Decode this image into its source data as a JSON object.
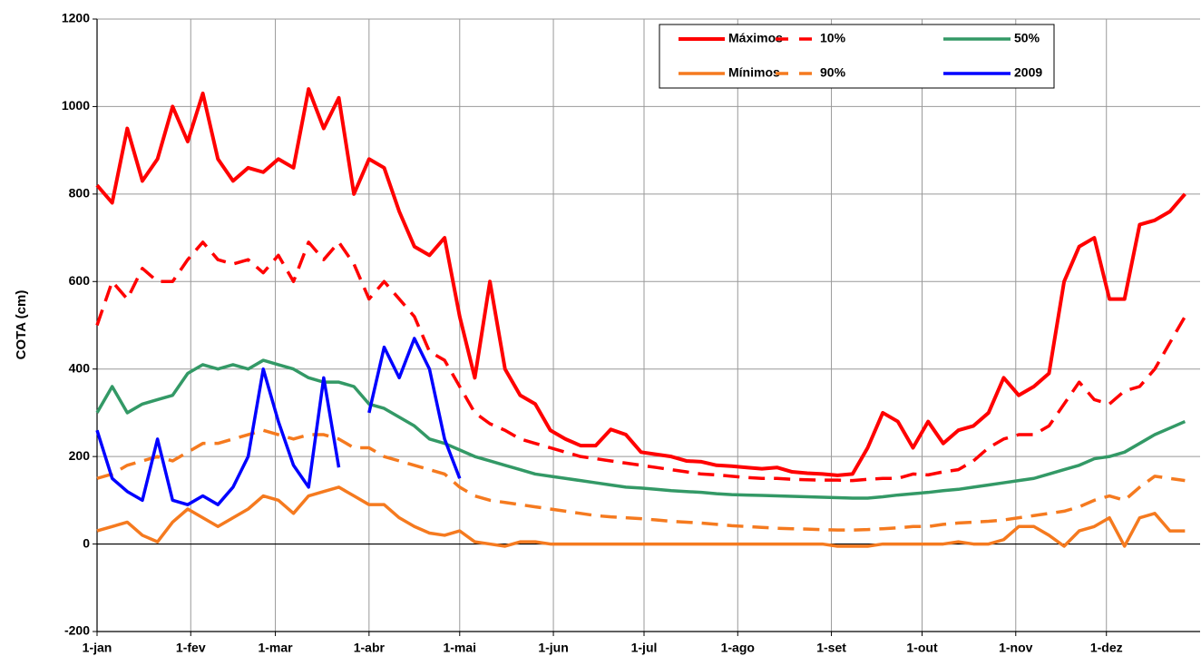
{
  "chart_data": {
    "type": "line",
    "ylabel": "COTA (cm)",
    "x": [
      1,
      6,
      11,
      16,
      21,
      26,
      31,
      36,
      41,
      46,
      51,
      56,
      61,
      66,
      71,
      76,
      81,
      86,
      91,
      96,
      101,
      106,
      111,
      116,
      121,
      126,
      131,
      136,
      141,
      146,
      151,
      156,
      161,
      166,
      171,
      176,
      181,
      186,
      191,
      196,
      201,
      206,
      211,
      216,
      221,
      226,
      231,
      236,
      241,
      246,
      251,
      256,
      261,
      266,
      271,
      276,
      281,
      286,
      291,
      296,
      301,
      306,
      311,
      316,
      321,
      326,
      331,
      336,
      341,
      346,
      351,
      356,
      361
    ],
    "xlim": [
      1,
      366
    ],
    "xticks": [
      {
        "value": 1,
        "label": "1-jan"
      },
      {
        "value": 32,
        "label": "1-fev"
      },
      {
        "value": 60,
        "label": "1-mar"
      },
      {
        "value": 91,
        "label": "1-abr"
      },
      {
        "value": 121,
        "label": "1-mai"
      },
      {
        "value": 152,
        "label": "1-jun"
      },
      {
        "value": 182,
        "label": "1-jul"
      },
      {
        "value": 213,
        "label": "1-ago"
      },
      {
        "value": 244,
        "label": "1-set"
      },
      {
        "value": 274,
        "label": "1-out"
      },
      {
        "value": 305,
        "label": "1-nov"
      },
      {
        "value": 335,
        "label": "1-dez"
      }
    ],
    "ylim": [
      -200,
      1200
    ],
    "yticks": [
      -200,
      0,
      200,
      400,
      600,
      800,
      1000,
      1200
    ],
    "grid": true,
    "legend": "upper right",
    "series": [
      {
        "name": "Máximos",
        "color": "#ff0000",
        "style": "solid",
        "values": [
          820,
          780,
          950,
          830,
          880,
          1000,
          920,
          1030,
          880,
          830,
          860,
          850,
          880,
          860,
          1040,
          950,
          1020,
          800,
          880,
          860,
          760,
          680,
          660,
          700,
          520,
          380,
          600,
          400,
          340,
          320,
          260,
          240,
          225,
          225,
          262,
          250,
          210,
          205,
          200,
          190,
          188,
          180,
          178,
          175,
          172,
          175,
          165,
          162,
          160,
          157,
          160,
          220,
          300,
          280,
          220,
          280,
          230,
          260,
          270,
          300,
          380,
          340,
          360,
          390,
          600,
          680,
          700,
          560,
          560,
          730,
          740,
          760,
          800
        ]
      },
      {
        "name": "Mínimos",
        "color": "#f57a1f",
        "style": "solid",
        "values": [
          30,
          40,
          50,
          20,
          5,
          50,
          80,
          60,
          40,
          60,
          80,
          110,
          100,
          70,
          110,
          120,
          130,
          110,
          90,
          90,
          60,
          40,
          25,
          20,
          30,
          5,
          0,
          -5,
          5,
          5,
          0,
          0,
          0,
          0,
          0,
          0,
          0,
          0,
          0,
          0,
          0,
          0,
          0,
          0,
          0,
          0,
          0,
          0,
          0,
          -5,
          -5,
          -5,
          0,
          0,
          0,
          0,
          0,
          5,
          0,
          0,
          10,
          40,
          40,
          20,
          -5,
          30,
          40,
          60,
          -5,
          60,
          70,
          30,
          30
        ]
      },
      {
        "name": "10%",
        "color": "#ff0000",
        "style": "dashed",
        "values": [
          500,
          600,
          560,
          630,
          600,
          600,
          650,
          690,
          650,
          640,
          650,
          620,
          660,
          600,
          690,
          650,
          690,
          640,
          560,
          600,
          560,
          520,
          440,
          420,
          360,
          300,
          275,
          260,
          240,
          230,
          220,
          210,
          200,
          195,
          190,
          185,
          180,
          175,
          170,
          165,
          160,
          158,
          155,
          152,
          150,
          150,
          148,
          147,
          146,
          146,
          145,
          148,
          150,
          150,
          160,
          158,
          165,
          170,
          190,
          220,
          240,
          250,
          250,
          270,
          320,
          370,
          330,
          320,
          350,
          360,
          400,
          460,
          520
        ]
      },
      {
        "name": "90%",
        "color": "#f57a1f",
        "style": "dashed",
        "values": [
          150,
          160,
          180,
          190,
          200,
          190,
          210,
          230,
          230,
          240,
          250,
          260,
          250,
          240,
          250,
          250,
          240,
          220,
          220,
          200,
          190,
          180,
          170,
          160,
          130,
          110,
          100,
          95,
          90,
          85,
          80,
          75,
          70,
          65,
          62,
          60,
          58,
          55,
          52,
          50,
          48,
          45,
          42,
          40,
          38,
          36,
          35,
          34,
          33,
          32,
          32,
          33,
          35,
          37,
          40,
          40,
          45,
          48,
          50,
          52,
          55,
          60,
          65,
          70,
          75,
          85,
          100,
          110,
          100,
          130,
          155,
          150,
          145
        ]
      },
      {
        "name": "50%",
        "color": "#339966",
        "style": "solid",
        "values": [
          300,
          360,
          300,
          320,
          330,
          340,
          390,
          410,
          400,
          410,
          400,
          420,
          410,
          400,
          380,
          370,
          370,
          360,
          320,
          310,
          290,
          270,
          240,
          230,
          215,
          200,
          190,
          180,
          170,
          160,
          155,
          150,
          145,
          140,
          135,
          130,
          128,
          125,
          122,
          120,
          118,
          115,
          113,
          112,
          111,
          110,
          109,
          108,
          107,
          106,
          105,
          105,
          108,
          112,
          115,
          118,
          122,
          125,
          130,
          135,
          140,
          145,
          150,
          160,
          170,
          180,
          195,
          200,
          210,
          230,
          250,
          265,
          280
        ]
      },
      {
        "name": "2009",
        "color": "#0000ff",
        "style": "solid",
        "values": [
          260,
          150,
          120,
          100,
          240,
          100,
          90,
          110,
          90,
          130,
          200,
          400,
          280,
          180,
          130,
          380,
          175,
          null,
          300,
          450,
          380,
          470,
          400,
          240,
          150,
          null,
          null,
          null,
          null,
          null,
          null,
          null,
          null,
          null,
          null,
          null,
          null,
          null,
          null,
          null,
          null,
          null,
          null,
          null,
          null,
          null,
          null,
          null,
          null,
          null,
          null,
          null,
          null,
          null,
          null,
          null,
          null,
          null,
          null,
          null,
          null,
          null,
          null,
          null,
          null,
          null,
          null,
          null,
          null,
          null,
          null,
          null,
          null
        ]
      }
    ]
  }
}
